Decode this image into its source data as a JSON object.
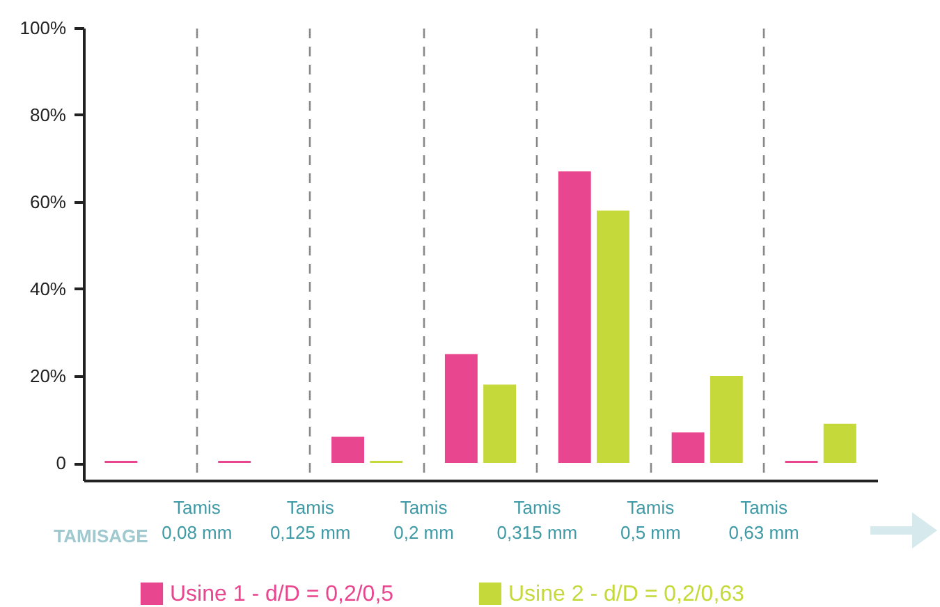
{
  "chart_data": {
    "type": "bar",
    "xlabel": "TAMISAGE",
    "categories": [
      null,
      null,
      null,
      null,
      null,
      null,
      null
    ],
    "series": [
      {
        "name": "Usine 1 - d/D = 0,2/0,5",
        "color": "#e8468f",
        "values": [
          0.5,
          0.5,
          6,
          25,
          67,
          7,
          0.5
        ]
      },
      {
        "name": "Usine 2 - d/D = 0,2/0,63",
        "color": "#c5d93a",
        "values": [
          null,
          null,
          0.5,
          18,
          58,
          20,
          9
        ]
      }
    ],
    "ylim": [
      -4,
      100
    ],
    "yticks": [
      {
        "value": 0,
        "label": "0"
      },
      {
        "value": 20,
        "label": "20%"
      },
      {
        "value": 40,
        "label": "40%"
      },
      {
        "value": 60,
        "label": "60%"
      },
      {
        "value": 80,
        "label": "80%"
      },
      {
        "value": 100,
        "label": "100%"
      }
    ],
    "annotations": [
      "Tamis\n0,08 mm",
      "Tamis\n0,125 mm",
      "Tamis\n0,2 mm",
      "Tamis\n0,315 mm",
      "Tamis\n0,5 mm",
      "Tamis\n0,63 mm"
    ],
    "grid": "x",
    "legend": "bottom"
  }
}
